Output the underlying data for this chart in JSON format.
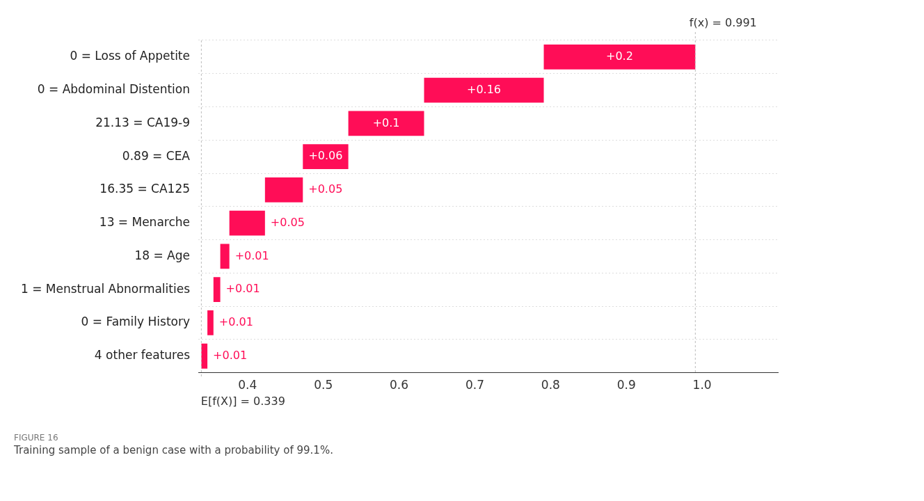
{
  "chart_data": {
    "type": "bar",
    "orientation": "horizontal",
    "categories": [
      "0 = Loss of Appetite",
      "0 = Abdominal Distention",
      "21.13 = CA19-9",
      "0.89 = CEA",
      "16.35 = CA125",
      "13 = Menarche",
      "18 = Age",
      "1 = Menstrual Abnormalities",
      "0 = Family History",
      "4 other features"
    ],
    "values": [
      0.2,
      0.158,
      0.1,
      0.06,
      0.05,
      0.047,
      0.012,
      0.009,
      0.008,
      0.008
    ],
    "base": [
      0.791,
      0.633,
      0.533,
      0.473,
      0.423,
      0.376,
      0.364,
      0.355,
      0.347,
      0.339
    ],
    "value_labels": [
      "+0.2",
      "+0.16",
      "+0.1",
      "+0.06",
      "+0.05",
      "+0.05",
      "+0.01",
      "+0.01",
      "+0.01",
      "+0.01"
    ],
    "color": "#ff0d57",
    "xlim": [
      0.335,
      1.1
    ],
    "xticks": [
      0.4,
      0.5,
      0.6,
      0.7,
      0.8,
      0.9,
      {
        "value": 1,
        "label": "1.0"
      }
    ],
    "ref_lines": [
      {
        "axis": "x",
        "value": 0.991,
        "label": "f(x) = 0.991"
      },
      {
        "axis": "x",
        "value": 0.339,
        "label": "E[f(X)] = 0.339"
      }
    ],
    "grid": "y",
    "legend": false,
    "annotations": [
      "FIGURE 16",
      "Training sample of a benign case with a probability of 99.1%."
    ]
  }
}
